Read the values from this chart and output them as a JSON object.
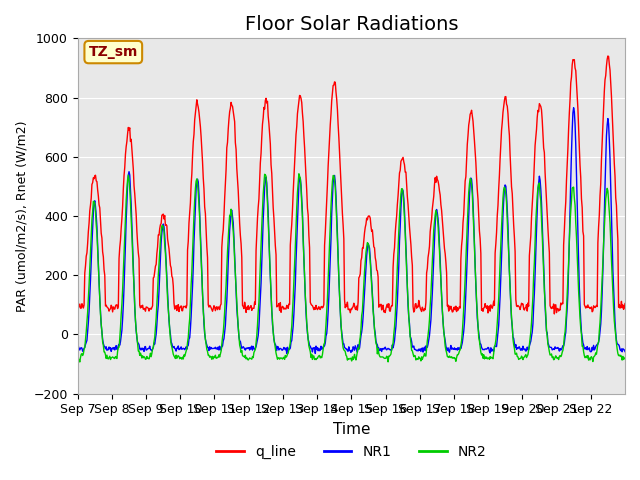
{
  "title": "Floor Solar Radiations",
  "xlabel": "Time",
  "ylabel": "PAR (umol/m2/s), Rnet (W/m2)",
  "ylim": [
    -200,
    1000
  ],
  "yticks": [
    -200,
    0,
    200,
    400,
    600,
    800,
    1000
  ],
  "xtick_labels": [
    "Sep 7",
    "Sep 8",
    "Sep 9",
    "Sep 10",
    "Sep 11",
    "Sep 12",
    "Sep 13",
    "Sep 14",
    "Sep 15",
    "Sep 16",
    "Sep 17",
    "Sep 18",
    "Sep 19",
    "Sep 20",
    "Sep 21",
    "Sep 22"
  ],
  "legend_labels": [
    "q_line",
    "NR1",
    "NR2"
  ],
  "legend_colors": [
    "#ff0000",
    "#0000ff",
    "#00cc00"
  ],
  "line_colors": {
    "q_line": "#ff0000",
    "NR1": "#0000ff",
    "NR2": "#00cc00"
  },
  "box_label": "TZ_sm",
  "box_facecolor": "#ffffcc",
  "box_edgecolor": "#cc8800",
  "bg_color": "#e8e8e8",
  "fig_color": "#ffffff",
  "num_days": 16,
  "pts_per_day": 48,
  "day_peaks_q": [
    540,
    690,
    400,
    780,
    780,
    800,
    800,
    850,
    400,
    600,
    530,
    750,
    800,
    780,
    930,
    940
  ],
  "day_peaks_nr1": [
    450,
    550,
    370,
    530,
    420,
    530,
    530,
    540,
    310,
    490,
    420,
    530,
    510,
    530,
    770,
    730
  ],
  "day_peaks_nr2": [
    450,
    530,
    370,
    520,
    420,
    540,
    540,
    540,
    310,
    490,
    420,
    530,
    500,
    510,
    500,
    490
  ],
  "night_base_q": 90,
  "night_base_nr1": -50,
  "night_base_nr2": -80,
  "grid_color": "#ffffff",
  "font_size": 11,
  "title_font_size": 14
}
